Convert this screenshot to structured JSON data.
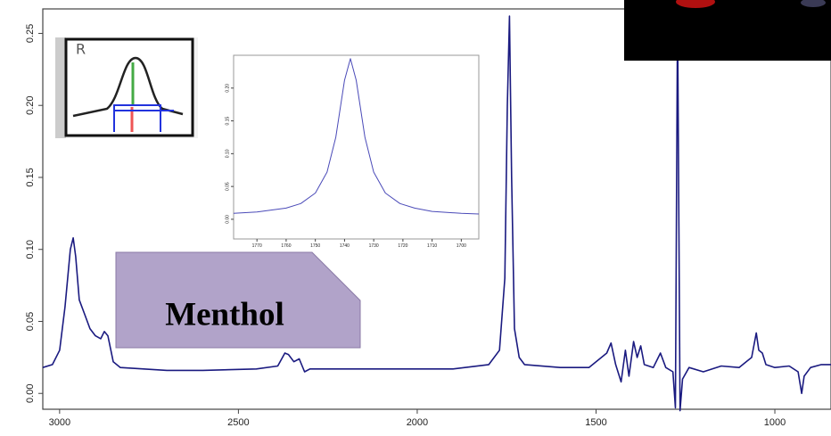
{
  "chart_data": [
    {
      "type": "line",
      "color": "#1a1a80",
      "x": [
        3047,
        3020,
        3000,
        2985,
        2970,
        2962,
        2955,
        2945,
        2930,
        2915,
        2900,
        2885,
        2875,
        2865,
        2850,
        2830,
        2700,
        2600,
        2450,
        2390,
        2370,
        2360,
        2345,
        2330,
        2315,
        2300,
        2100,
        1900,
        1800,
        1770,
        1755,
        1748,
        1742,
        1736,
        1728,
        1715,
        1700,
        1600,
        1520,
        1470,
        1458,
        1445,
        1430,
        1418,
        1408,
        1395,
        1385,
        1375,
        1365,
        1340,
        1320,
        1305,
        1285,
        1278,
        1272,
        1265,
        1258,
        1240,
        1200,
        1150,
        1100,
        1080,
        1065,
        1052,
        1045,
        1035,
        1025,
        1000,
        960,
        935,
        925,
        918,
        900,
        870,
        843
      ],
      "values": [
        0.018,
        0.02,
        0.03,
        0.06,
        0.1,
        0.108,
        0.095,
        0.065,
        0.055,
        0.045,
        0.04,
        0.038,
        0.043,
        0.04,
        0.022,
        0.018,
        0.016,
        0.016,
        0.017,
        0.019,
        0.028,
        0.027,
        0.022,
        0.024,
        0.015,
        0.017,
        0.017,
        0.017,
        0.02,
        0.03,
        0.08,
        0.2,
        0.262,
        0.15,
        0.045,
        0.025,
        0.02,
        0.018,
        0.018,
        0.028,
        0.035,
        0.02,
        0.008,
        0.03,
        0.012,
        0.036,
        0.025,
        0.033,
        0.02,
        0.018,
        0.028,
        0.018,
        0.015,
        -0.01,
        0.267,
        -0.012,
        0.01,
        0.018,
        0.015,
        0.019,
        0.018,
        0.022,
        0.025,
        0.042,
        0.03,
        0.028,
        0.02,
        0.018,
        0.019,
        0.015,
        0.0,
        0.012,
        0.018,
        0.02,
        0.02
      ],
      "xlim": [
        3047,
        843
      ],
      "ylim": [
        -0.011,
        0.267
      ],
      "xticks": [
        3000,
        2500,
        2000,
        1500,
        1000
      ],
      "yticks": [
        {
          "value": 0,
          "label": "0.00"
        },
        {
          "value": 0.05,
          "label": "0.05"
        },
        {
          "value": 0.1,
          "label": "0.10"
        },
        {
          "value": 0.15,
          "label": "0.15"
        },
        {
          "value": 0.2,
          "label": "0.20"
        },
        {
          "value": 0.25,
          "label": "0.25"
        }
      ]
    },
    {
      "type": "line",
      "color": "#4a4ab8",
      "x": [
        1778,
        1770,
        1760,
        1755,
        1750,
        1746,
        1743,
        1740,
        1738,
        1736,
        1733,
        1730,
        1726,
        1721,
        1716,
        1710,
        1700,
        1694
      ],
      "values": [
        0.009,
        0.011,
        0.017,
        0.024,
        0.04,
        0.072,
        0.125,
        0.212,
        0.245,
        0.212,
        0.125,
        0.072,
        0.04,
        0.024,
        0.017,
        0.012,
        0.009,
        0.008
      ],
      "xlim": [
        1778,
        1694
      ],
      "ylim": [
        -0.03,
        0.25
      ],
      "xticks": [
        1770,
        1760,
        1750,
        1740,
        1730,
        1720,
        1710,
        1700
      ],
      "yticks": [
        {
          "value": 0,
          "label": "0.00"
        },
        {
          "value": 0.05,
          "label": "0.05"
        },
        {
          "value": 0.1,
          "label": "0.10"
        },
        {
          "value": 0.15,
          "label": "0.15"
        },
        {
          "value": 0.2,
          "label": "0.20"
        }
      ]
    }
  ],
  "logo": {
    "text": "R"
  },
  "annotation": {
    "text": "Menthol"
  }
}
